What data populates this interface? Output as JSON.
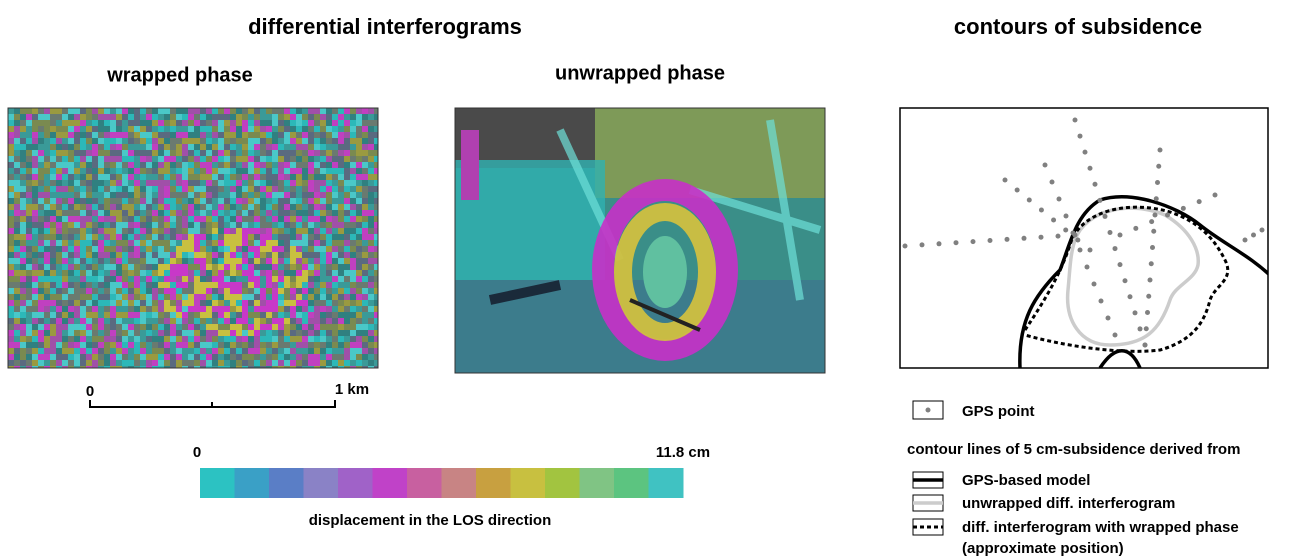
{
  "header": {
    "left_title": "differential  interferograms",
    "right_title": "contours of subsidence"
  },
  "panels": {
    "wrapped": "wrapped phase",
    "unwrapped": "unwrapped phase"
  },
  "scale_bar": {
    "start": "0",
    "end": "1 km"
  },
  "colorbar": {
    "min": "0",
    "max": "11.8 cm",
    "label": "displacement in the LOS direction",
    "colors": [
      "#2cc2c2",
      "#3aa0c6",
      "#5a7ec6",
      "#8a82c6",
      "#a062c8",
      "#c042c8",
      "#c860a0",
      "#c88484",
      "#c8a040",
      "#c8c040",
      "#a2c440",
      "#80c484",
      "#5cc480",
      "#40c2c2"
    ]
  },
  "legend": {
    "gps_point": "GPS point",
    "heading": "contour lines of 5 cm-subsidence derived from",
    "items": [
      "GPS-based model",
      "unwrapped diff. interferogram",
      "diff. interferogram with wrapped phase",
      "(approximate position)"
    ]
  }
}
